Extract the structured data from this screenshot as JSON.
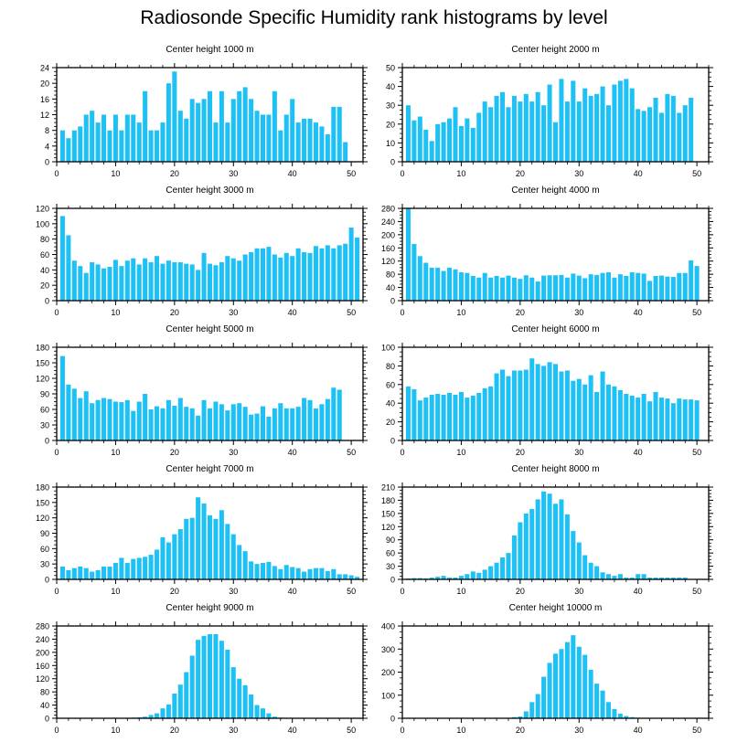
{
  "title": "Radiosonde Specific Humidity rank histograms by level",
  "colors": {
    "bar": "#1ec1f5",
    "axis": "#000000"
  },
  "chart_data": [
    {
      "type": "bar",
      "title": "Center height 1000 m",
      "xlabel": "",
      "ylabel": "",
      "xlim": [
        0,
        52
      ],
      "ylim": [
        0,
        24
      ],
      "yticks": [
        0,
        4,
        8,
        12,
        16,
        20,
        24
      ],
      "xticks": [
        0,
        10,
        20,
        30,
        40,
        50
      ],
      "values": [
        8,
        6,
        8,
        9,
        12,
        13,
        10,
        12,
        8,
        12,
        8,
        12,
        12,
        10,
        18,
        8,
        8,
        10,
        20,
        23,
        13,
        11,
        16,
        15,
        16,
        18,
        10,
        18,
        10,
        16,
        18,
        19,
        16,
        13,
        12,
        12,
        18,
        8,
        12,
        16,
        10,
        11,
        11,
        10,
        9,
        7,
        14,
        14,
        5
      ]
    },
    {
      "type": "bar",
      "title": "Center height 2000 m",
      "xlabel": "",
      "ylabel": "",
      "xlim": [
        0,
        52
      ],
      "ylim": [
        0,
        50
      ],
      "yticks": [
        0,
        10,
        20,
        30,
        40,
        50
      ],
      "xticks": [
        0,
        10,
        20,
        30,
        40,
        50
      ],
      "values": [
        30,
        22,
        24,
        17,
        11,
        20,
        21,
        23,
        29,
        19,
        23,
        18,
        26,
        32,
        29,
        35,
        37,
        29,
        35,
        32,
        36,
        32,
        37,
        30,
        41,
        21,
        44,
        32,
        43,
        32,
        39,
        35,
        36,
        40,
        30,
        41,
        43,
        44,
        39,
        28,
        27,
        29,
        34,
        26,
        36,
        35,
        26,
        30,
        34
      ]
    },
    {
      "type": "bar",
      "title": "Center height 3000 m",
      "xlabel": "",
      "ylabel": "",
      "xlim": [
        0,
        52
      ],
      "ylim": [
        0,
        120
      ],
      "yticks": [
        0,
        20,
        40,
        60,
        80,
        100,
        120
      ],
      "xticks": [
        0,
        10,
        20,
        30,
        40,
        50
      ],
      "values": [
        110,
        85,
        52,
        45,
        36,
        50,
        47,
        42,
        44,
        53,
        45,
        52,
        55,
        47,
        55,
        50,
        58,
        48,
        52,
        50,
        50,
        48,
        47,
        40,
        62,
        48,
        46,
        50,
        58,
        55,
        52,
        60,
        63,
        68,
        68,
        70,
        60,
        56,
        62,
        58,
        68,
        63,
        62,
        71,
        68,
        72,
        68,
        72,
        74,
        95,
        82
      ]
    },
    {
      "type": "bar",
      "title": "Center height 4000 m",
      "xlabel": "",
      "ylabel": "",
      "xlim": [
        0,
        52
      ],
      "ylim": [
        0,
        280
      ],
      "yticks": [
        0,
        40,
        80,
        120,
        160,
        200,
        240,
        280
      ],
      "xticks": [
        0,
        10,
        20,
        30,
        40,
        50
      ],
      "values": [
        280,
        172,
        135,
        115,
        100,
        100,
        90,
        100,
        95,
        86,
        84,
        75,
        70,
        84,
        70,
        75,
        70,
        76,
        70,
        66,
        77,
        70,
        58,
        76,
        77,
        77,
        78,
        70,
        82,
        76,
        68,
        80,
        78,
        84,
        86,
        70,
        80,
        75,
        86,
        84,
        82,
        60,
        75,
        76,
        73,
        72,
        84,
        84,
        122,
        105
      ]
    },
    {
      "type": "bar",
      "title": "Center height 5000 m",
      "xlabel": "",
      "ylabel": "",
      "xlim": [
        0,
        52
      ],
      "ylim": [
        0,
        180
      ],
      "yticks": [
        0,
        30,
        60,
        90,
        120,
        150,
        180
      ],
      "xticks": [
        0,
        10,
        20,
        30,
        40,
        50
      ],
      "values": [
        163,
        108,
        100,
        82,
        95,
        72,
        78,
        82,
        80,
        75,
        74,
        78,
        57,
        75,
        90,
        60,
        66,
        62,
        78,
        67,
        82,
        65,
        62,
        48,
        78,
        62,
        75,
        70,
        58,
        70,
        72,
        65,
        50,
        52,
        66,
        46,
        62,
        72,
        62,
        62,
        65,
        82,
        78,
        62,
        70,
        80,
        102,
        98
      ]
    },
    {
      "type": "bar",
      "title": "Center height 6000 m",
      "xlabel": "",
      "ylabel": "",
      "xlim": [
        0,
        52
      ],
      "ylim": [
        0,
        100
      ],
      "yticks": [
        0,
        20,
        40,
        60,
        80,
        100
      ],
      "xticks": [
        0,
        10,
        20,
        30,
        40,
        50
      ],
      "values": [
        58,
        55,
        43,
        46,
        49,
        50,
        49,
        51,
        49,
        52,
        46,
        48,
        51,
        56,
        58,
        72,
        76,
        69,
        75,
        75,
        76,
        88,
        82,
        80,
        84,
        82,
        74,
        75,
        64,
        66,
        60,
        70,
        52,
        74,
        60,
        58,
        54,
        50,
        48,
        46,
        50,
        42,
        52,
        46,
        45,
        40,
        45,
        44,
        44,
        43
      ]
    },
    {
      "type": "bar",
      "title": "Center height 7000 m",
      "xlabel": "",
      "ylabel": "",
      "xlim": [
        0,
        52
      ],
      "ylim": [
        0,
        180
      ],
      "yticks": [
        0,
        30,
        60,
        90,
        120,
        150,
        180
      ],
      "xticks": [
        0,
        10,
        20,
        30,
        40,
        50
      ],
      "values": [
        25,
        18,
        22,
        25,
        22,
        15,
        18,
        25,
        25,
        32,
        42,
        32,
        40,
        42,
        44,
        48,
        58,
        82,
        72,
        88,
        98,
        118,
        120,
        160,
        148,
        125,
        118,
        135,
        108,
        88,
        67,
        55,
        35,
        30,
        32,
        34,
        26,
        20,
        28,
        24,
        22,
        15,
        20,
        22,
        22,
        16,
        20,
        10,
        10,
        8,
        5
      ]
    },
    {
      "type": "bar",
      "title": "Center height 8000 m",
      "xlabel": "",
      "ylabel": "",
      "xlim": [
        0,
        52
      ],
      "ylim": [
        0,
        210
      ],
      "yticks": [
        0,
        30,
        60,
        90,
        120,
        150,
        180,
        210
      ],
      "xticks": [
        0,
        10,
        20,
        30,
        40,
        50
      ],
      "values": [
        2,
        3,
        3,
        2,
        4,
        6,
        8,
        4,
        4,
        8,
        12,
        18,
        15,
        22,
        30,
        38,
        50,
        60,
        100,
        130,
        150,
        160,
        182,
        200,
        195,
        172,
        182,
        148,
        110,
        84,
        55,
        38,
        30,
        16,
        12,
        8,
        12,
        4,
        4,
        12,
        12,
        4,
        4,
        4,
        4,
        4,
        4,
        4
      ]
    },
    {
      "type": "bar",
      "title": "Center height 9000 m",
      "xlabel": "",
      "ylabel": "",
      "xlim": [
        0,
        52
      ],
      "ylim": [
        0,
        280
      ],
      "yticks": [
        0,
        40,
        80,
        120,
        160,
        200,
        240,
        280
      ],
      "xticks": [
        0,
        10,
        20,
        30,
        40,
        50
      ],
      "values": [
        0,
        0,
        0,
        0,
        0,
        0,
        0,
        0,
        0,
        0,
        0,
        0,
        2,
        3,
        5,
        10,
        15,
        30,
        42,
        75,
        102,
        140,
        190,
        238,
        250,
        255,
        255,
        235,
        208,
        155,
        120,
        100,
        72,
        40,
        30,
        15,
        5,
        2,
        0,
        0,
        0,
        0,
        0,
        0,
        0,
        0,
        0,
        0,
        0,
        0,
        0
      ]
    },
    {
      "type": "bar",
      "title": "Center height 10000 m",
      "xlabel": "",
      "ylabel": "",
      "xlim": [
        0,
        52
      ],
      "ylim": [
        0,
        400
      ],
      "yticks": [
        0,
        100,
        200,
        300,
        400
      ],
      "xticks": [
        0,
        10,
        20,
        30,
        40,
        50
      ],
      "values": [
        0,
        0,
        0,
        0,
        0,
        0,
        0,
        0,
        0,
        0,
        0,
        0,
        0,
        0,
        0,
        0,
        0,
        2,
        5,
        8,
        30,
        70,
        105,
        180,
        240,
        280,
        300,
        330,
        360,
        310,
        275,
        210,
        150,
        120,
        70,
        40,
        20,
        10,
        5,
        2,
        0,
        0,
        0,
        0,
        0,
        0,
        0,
        0,
        0,
        0
      ]
    }
  ]
}
